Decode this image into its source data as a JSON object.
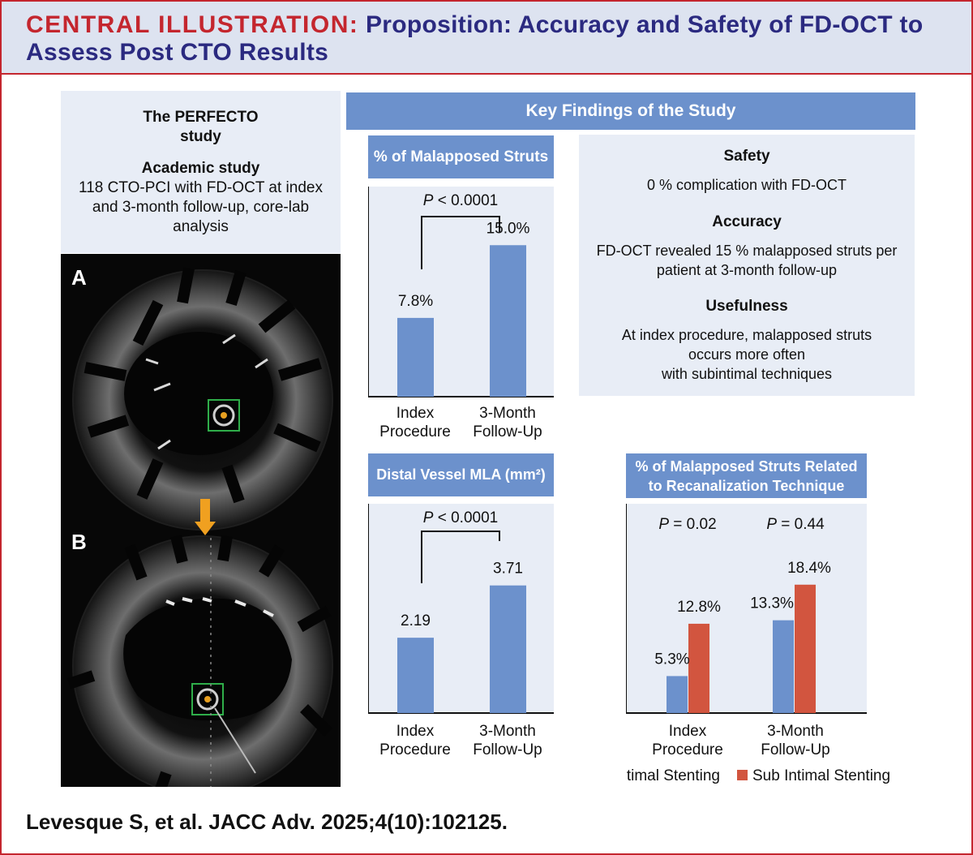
{
  "header": {
    "label": "CENTRAL ILLUSTRATION:",
    "title_line1": "Proposition: Accuracy and Safety of FD-OCT to",
    "title_line2": "Assess Post CTO Results"
  },
  "study_box": {
    "name_line1": "The PERFECTO",
    "name_line2": "study",
    "type": "Academic study",
    "desc_line1": "118 CTO-PCI with FD-OCT at index",
    "desc_line2": "and 3-month follow-up, core-lab",
    "desc_line3": "analysis"
  },
  "oct_images": {
    "label_a": "A",
    "label_b": "B",
    "arrow_color": "#f0a020"
  },
  "key_findings": {
    "header": "Key Findings of the Study",
    "safety_title": "Safety",
    "safety_text": "0 % complication with FD-OCT",
    "accuracy_title": "Accuracy",
    "accuracy_line1": "FD-OCT revealed 15 % malapposed struts per",
    "accuracy_line2": "patient at 3-month follow-up",
    "usefulness_title": "Usefulness",
    "usefulness_line1": "At index procedure, malapposed struts",
    "usefulness_line2": "occurs more often",
    "usefulness_line3": "with subintimal techniques"
  },
  "colors": {
    "blue": "#6c91cc",
    "red": "#d2553f",
    "title_red": "#c4262e",
    "navy": "#2b2a80",
    "panel": "#e8edf6"
  },
  "chart_data": [
    {
      "type": "bar",
      "title": "% of Malapposed Struts",
      "categories_line1": [
        "Index",
        "3-Month"
      ],
      "categories_line2": [
        "Procedure",
        "Follow-Up"
      ],
      "values": [
        7.8,
        15.0
      ],
      "value_labels": [
        "7.8%",
        "15.0%"
      ],
      "p_prefix": "P",
      "p_suffix": "< 0.0001",
      "ylim": [
        0,
        20
      ],
      "grid": false
    },
    {
      "type": "bar",
      "title": "Distal Vessel MLA (mm²)",
      "categories_line1": [
        "Index",
        "3-Month"
      ],
      "categories_line2": [
        "Procedure",
        "Follow-Up"
      ],
      "values": [
        2.19,
        3.71
      ],
      "value_labels": [
        "2.19",
        "3.71"
      ],
      "p_prefix": "P",
      "p_suffix": "< 0.0001",
      "ylim": [
        0,
        5
      ],
      "grid": false
    },
    {
      "type": "bar",
      "title_line1": "% of Malapposed Struts Related",
      "title_line2": "to Recanalization Technique",
      "categories_line1": [
        "Index",
        "3-Month"
      ],
      "categories_line2": [
        "Procedure",
        "Follow-Up"
      ],
      "series": [
        {
          "name": "Intimal Stenting",
          "values": [
            5.3,
            13.3
          ],
          "value_labels": [
            "5.3%",
            "13.3%"
          ]
        },
        {
          "name": "Sub Intimal Stenting",
          "values": [
            12.8,
            18.4
          ],
          "value_labels": [
            "12.8%",
            "18.4%"
          ]
        }
      ],
      "p_prefix": "P",
      "p_values": [
        "= 0.02",
        "= 0.44"
      ],
      "ylim": [
        0,
        25
      ],
      "legend": "bottom",
      "grid": false
    }
  ],
  "citation": "Levesque S, et al. JACC Adv. 2025;4(10):102125."
}
